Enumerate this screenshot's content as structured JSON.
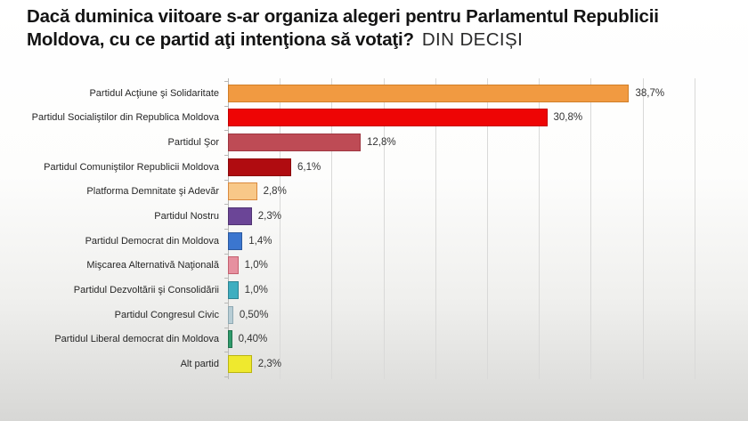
{
  "title": {
    "question": "Dacă duminica viitoare s-ar organiza alegeri pentru Parlamentul Republicii Moldova, cu ce partid aţi intenţiona să votaţi?",
    "suffix": "DIN DECIȘI"
  },
  "chart_data": {
    "type": "bar",
    "orientation": "horizontal",
    "title": "Dacă duminica viitoare s-ar organiza alegeri pentru Parlamentul Republicii Moldova, cu ce partid aţi intenţiona să votaţi? DIN DECIȘI",
    "categories": [
      "Partidul Acţiune şi Solidaritate",
      "Partidul Socialiştilor din Republica Moldova",
      "Partidul Şor",
      "Partidul Comuniştilor Republicii Moldova",
      "Platforma Demnitate şi Adevăr",
      "Partidul Nostru",
      "Partidul Democrat din Moldova",
      "Mişcarea Alternativă Naţională",
      "Partidul Dezvoltării şi Consolidării",
      "Partidul Congresul Civic",
      "Partidul Liberal democrat din Moldova",
      "Alt partid"
    ],
    "values": [
      38.7,
      30.8,
      12.8,
      6.1,
      2.8,
      2.3,
      1.4,
      1.0,
      1.0,
      0.5,
      0.4,
      2.3
    ],
    "value_labels": [
      "38,7%",
      "30,8%",
      "12,8%",
      "6,1%",
      "2,8%",
      "2,3%",
      "1,4%",
      "1,0%",
      "1,0%",
      "0,50%",
      "0,40%",
      "2,3%"
    ],
    "bar_fill_colors": [
      "#F19A41",
      "#EE0505",
      "#BE4B55",
      "#B00C10",
      "#F8C888",
      "#6B4597",
      "#3B76CF",
      "#E6909F",
      "#3FAEC0",
      "#B7CDD5",
      "#2F9B6B",
      "#EFE92E"
    ],
    "bar_border_colors": [
      "#D07E28",
      "#C40000",
      "#9E3640",
      "#8A090C",
      "#DA8A3E",
      "#503472",
      "#2C599E",
      "#C4606F",
      "#2E8492",
      "#8FA9B3",
      "#20724D",
      "#B9B412"
    ],
    "xlabel": "",
    "ylabel": "",
    "xlim": [
      0,
      48
    ],
    "gridline_step": 5,
    "gridline_max": 45,
    "grid": "vertical light grey lines, no axis tick labels shown",
    "legend": "none"
  },
  "colors": {
    "background_top": "#ffffff",
    "background_bottom": "#d7d7d5",
    "gridline": "#d9d9d8",
    "axis": "#b9b9b7",
    "title_text": "#141414",
    "label_text": "#262626",
    "value_text": "#333333"
  }
}
